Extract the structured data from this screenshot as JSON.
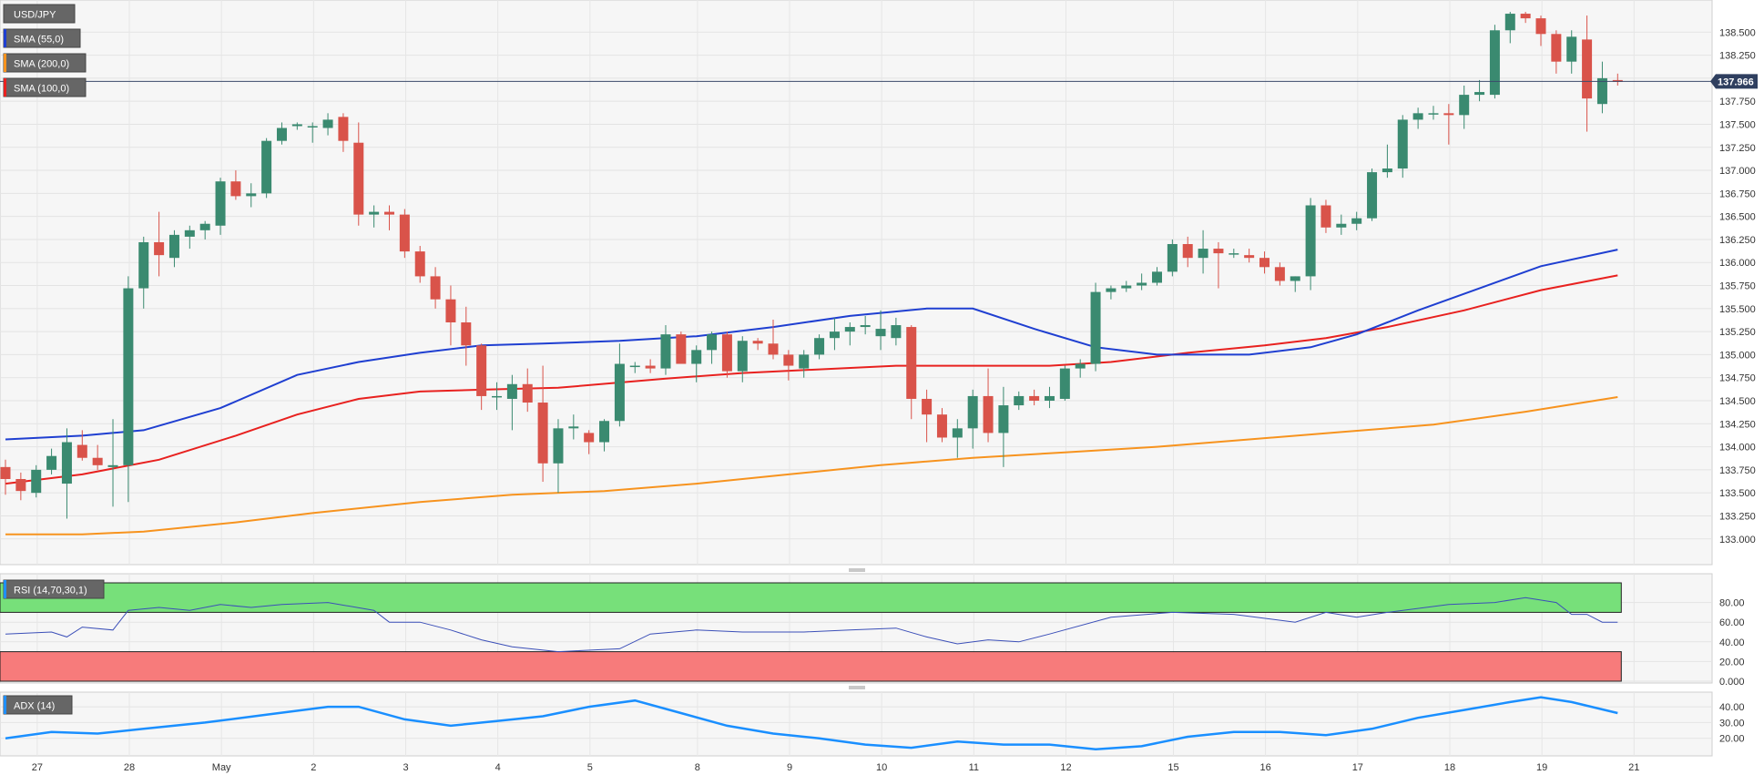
{
  "chart_data": [
    {
      "type": "candlestick",
      "legend": [
        {
          "label": "USD/JPY",
          "color": "#ffffff"
        },
        {
          "label": "SMA (55,0)",
          "color": "#1f3fd1"
        },
        {
          "label": "SMA (200,0)",
          "color": "#f7931e"
        },
        {
          "label": "SMA (100,0)",
          "color": "#e8211f"
        }
      ],
      "last_price_label": "137.966",
      "last_price": 137.966,
      "ylim": [
        132.8,
        138.75
      ],
      "y_ticks": [
        "133.000",
        "133.250",
        "133.500",
        "133.750",
        "134.000",
        "134.250",
        "134.500",
        "134.750",
        "135.000",
        "135.250",
        "135.500",
        "135.750",
        "136.000",
        "136.250",
        "136.500",
        "136.750",
        "137.000",
        "137.250",
        "137.500",
        "137.750",
        "138.000",
        "138.250",
        "138.500"
      ],
      "x_labels": [
        {
          "label": "27",
          "i": 1
        },
        {
          "label": "28",
          "i": 7
        },
        {
          "label": "May",
          "i": 13
        },
        {
          "label": "2",
          "i": 19
        },
        {
          "label": "3",
          "i": 25
        },
        {
          "label": "4",
          "i": 31
        },
        {
          "label": "5",
          "i": 37
        },
        {
          "label": "8",
          "i": 44
        },
        {
          "label": "9",
          "i": 50
        },
        {
          "label": "10",
          "i": 56
        },
        {
          "label": "11",
          "i": 62
        },
        {
          "label": "12",
          "i": 68
        },
        {
          "label": "15",
          "i": 75
        },
        {
          "label": "16",
          "i": 81
        },
        {
          "label": "17",
          "i": 87
        },
        {
          "label": "18",
          "i": 93
        },
        {
          "label": "19",
          "i": 99
        },
        {
          "label": "21",
          "i": 105
        }
      ],
      "ohlc": [
        [
          133.78,
          133.86,
          133.48,
          133.65
        ],
        [
          133.65,
          133.72,
          133.42,
          133.52
        ],
        [
          133.5,
          133.8,
          133.45,
          133.75
        ],
        [
          133.75,
          133.98,
          133.7,
          133.9
        ],
        [
          133.6,
          134.2,
          133.22,
          134.05
        ],
        [
          134.02,
          134.18,
          133.85,
          133.88
        ],
        [
          133.88,
          134.02,
          133.75,
          133.8
        ],
        [
          133.78,
          134.3,
          133.35,
          133.8
        ],
        [
          133.8,
          135.85,
          133.4,
          135.72
        ],
        [
          135.72,
          136.28,
          135.5,
          136.22
        ],
        [
          136.22,
          136.55,
          135.85,
          136.08
        ],
        [
          136.05,
          136.35,
          135.95,
          136.3
        ],
        [
          136.28,
          136.4,
          136.15,
          136.35
        ],
        [
          136.35,
          136.45,
          136.25,
          136.42
        ],
        [
          136.4,
          136.92,
          136.3,
          136.88
        ],
        [
          136.88,
          137.0,
          136.68,
          136.72
        ],
        [
          136.72,
          136.86,
          136.6,
          136.75
        ],
        [
          136.75,
          137.35,
          136.7,
          137.32
        ],
        [
          137.32,
          137.52,
          137.28,
          137.46
        ],
        [
          137.48,
          137.52,
          137.44,
          137.5
        ],
        [
          137.48,
          137.52,
          137.3,
          137.48
        ],
        [
          137.46,
          137.62,
          137.38,
          137.55
        ],
        [
          137.58,
          137.62,
          137.2,
          137.32
        ],
        [
          137.3,
          137.52,
          136.4,
          136.52
        ],
        [
          136.52,
          136.62,
          136.38,
          136.55
        ],
        [
          136.55,
          136.62,
          136.35,
          136.52
        ],
        [
          136.52,
          136.58,
          136.05,
          136.12
        ],
        [
          136.12,
          136.18,
          135.78,
          135.85
        ],
        [
          135.85,
          135.95,
          135.5,
          135.6
        ],
        [
          135.6,
          135.75,
          135.1,
          135.35
        ],
        [
          135.35,
          135.52,
          134.88,
          135.1
        ],
        [
          135.1,
          135.12,
          134.4,
          134.55
        ],
        [
          134.55,
          134.7,
          134.4,
          134.55
        ],
        [
          134.52,
          134.78,
          134.18,
          134.68
        ],
        [
          134.68,
          134.85,
          134.38,
          134.48
        ],
        [
          134.48,
          134.88,
          133.62,
          133.82
        ],
        [
          133.82,
          134.3,
          133.5,
          134.2
        ],
        [
          134.2,
          134.35,
          134.08,
          134.22
        ],
        [
          134.15,
          134.18,
          133.92,
          134.05
        ],
        [
          134.05,
          134.3,
          133.95,
          134.28
        ],
        [
          134.28,
          135.12,
          134.22,
          134.9
        ],
        [
          134.88,
          134.92,
          134.8,
          134.88
        ],
        [
          134.88,
          134.95,
          134.8,
          134.85
        ],
        [
          134.85,
          135.32,
          134.78,
          135.22
        ],
        [
          135.22,
          135.25,
          134.95,
          134.9
        ],
        [
          134.9,
          135.1,
          134.7,
          135.05
        ],
        [
          135.05,
          135.25,
          134.9,
          135.22
        ],
        [
          135.22,
          135.25,
          134.75,
          134.82
        ],
        [
          134.82,
          135.2,
          134.7,
          135.15
        ],
        [
          135.15,
          135.18,
          135.05,
          135.12
        ],
        [
          135.12,
          135.38,
          134.95,
          135.0
        ],
        [
          135.0,
          135.05,
          134.72,
          134.88
        ],
        [
          134.85,
          135.05,
          134.75,
          135.0
        ],
        [
          135.0,
          135.22,
          134.95,
          135.18
        ],
        [
          135.18,
          135.4,
          135.05,
          135.25
        ],
        [
          135.25,
          135.35,
          135.1,
          135.3
        ],
        [
          135.3,
          135.42,
          135.22,
          135.32
        ],
        [
          135.2,
          135.48,
          135.05,
          135.28
        ],
        [
          135.18,
          135.4,
          135.1,
          135.32
        ],
        [
          135.3,
          135.32,
          134.3,
          134.52
        ],
        [
          134.52,
          134.62,
          134.05,
          134.35
        ],
        [
          134.35,
          134.42,
          134.05,
          134.1
        ],
        [
          134.1,
          134.3,
          133.88,
          134.2
        ],
        [
          134.2,
          134.62,
          133.98,
          134.55
        ],
        [
          134.55,
          134.85,
          134.05,
          134.15
        ],
        [
          134.15,
          134.65,
          133.78,
          134.45
        ],
        [
          134.45,
          134.6,
          134.4,
          134.55
        ],
        [
          134.55,
          134.62,
          134.45,
          134.5
        ],
        [
          134.5,
          134.65,
          134.42,
          134.55
        ],
        [
          134.52,
          134.88,
          134.5,
          134.85
        ],
        [
          134.85,
          134.95,
          134.75,
          134.9
        ],
        [
          134.9,
          135.78,
          134.82,
          135.68
        ],
        [
          135.68,
          135.75,
          135.6,
          135.72
        ],
        [
          135.72,
          135.8,
          135.68,
          135.75
        ],
        [
          135.75,
          135.88,
          135.7,
          135.78
        ],
        [
          135.78,
          135.95,
          135.75,
          135.9
        ],
        [
          135.9,
          136.25,
          135.85,
          136.2
        ],
        [
          136.2,
          136.28,
          135.95,
          136.05
        ],
        [
          136.05,
          136.35,
          135.88,
          136.15
        ],
        [
          136.15,
          136.22,
          135.72,
          136.1
        ],
        [
          136.1,
          136.15,
          136.05,
          136.1
        ],
        [
          136.08,
          136.15,
          136.0,
          136.05
        ],
        [
          136.05,
          136.12,
          135.88,
          135.95
        ],
        [
          135.95,
          136.0,
          135.75,
          135.8
        ],
        [
          135.8,
          135.85,
          135.68,
          135.85
        ],
        [
          135.85,
          136.7,
          135.7,
          136.62
        ],
        [
          136.62,
          136.68,
          136.32,
          136.38
        ],
        [
          136.38,
          136.52,
          136.3,
          136.42
        ],
        [
          136.42,
          136.55,
          136.35,
          136.48
        ],
        [
          136.48,
          137.02,
          136.45,
          136.98
        ],
        [
          136.98,
          137.28,
          136.92,
          137.02
        ],
        [
          137.02,
          137.6,
          136.92,
          137.55
        ],
        [
          137.55,
          137.68,
          137.45,
          137.62
        ],
        [
          137.62,
          137.7,
          137.55,
          137.62
        ],
        [
          137.62,
          137.72,
          137.28,
          137.6
        ],
        [
          137.6,
          137.92,
          137.45,
          137.82
        ],
        [
          137.82,
          137.98,
          137.75,
          137.85
        ],
        [
          137.82,
          138.58,
          137.78,
          138.52
        ],
        [
          138.52,
          138.72,
          138.38,
          138.7
        ],
        [
          138.7,
          138.72,
          138.6,
          138.65
        ],
        [
          138.65,
          138.68,
          138.35,
          138.48
        ],
        [
          138.48,
          138.52,
          138.05,
          138.18
        ],
        [
          138.18,
          138.52,
          138.05,
          138.45
        ],
        [
          138.42,
          138.68,
          137.42,
          137.78
        ],
        [
          137.72,
          138.18,
          137.62,
          138.0
        ],
        [
          137.98,
          138.05,
          137.92,
          137.96
        ]
      ],
      "sma55": [
        [
          0,
          134.08
        ],
        [
          5,
          134.12
        ],
        [
          9,
          134.18
        ],
        [
          14,
          134.42
        ],
        [
          19,
          134.78
        ],
        [
          23,
          134.92
        ],
        [
          27,
          135.02
        ],
        [
          31,
          135.1
        ],
        [
          35,
          135.12
        ],
        [
          40,
          135.15
        ],
        [
          45,
          135.2
        ],
        [
          50,
          135.3
        ],
        [
          55,
          135.42
        ],
        [
          60,
          135.5
        ],
        [
          63,
          135.5
        ],
        [
          67,
          135.28
        ],
        [
          71,
          135.08
        ],
        [
          75,
          135.0
        ],
        [
          81,
          135.0
        ],
        [
          85,
          135.08
        ],
        [
          88,
          135.22
        ],
        [
          92,
          135.48
        ],
        [
          96,
          135.72
        ],
        [
          100,
          135.96
        ],
        [
          105,
          136.14
        ]
      ],
      "sma100": [
        [
          0,
          133.6
        ],
        [
          5,
          133.7
        ],
        [
          10,
          133.86
        ],
        [
          15,
          134.12
        ],
        [
          19,
          134.35
        ],
        [
          23,
          134.52
        ],
        [
          27,
          134.6
        ],
        [
          31,
          134.62
        ],
        [
          36,
          134.64
        ],
        [
          43,
          134.74
        ],
        [
          48,
          134.8
        ],
        [
          53,
          134.84
        ],
        [
          58,
          134.88
        ],
        [
          63,
          134.88
        ],
        [
          68,
          134.88
        ],
        [
          72,
          134.92
        ],
        [
          77,
          135.02
        ],
        [
          82,
          135.1
        ],
        [
          86,
          135.18
        ],
        [
          90,
          135.3
        ],
        [
          95,
          135.48
        ],
        [
          100,
          135.7
        ],
        [
          105,
          135.86
        ]
      ],
      "sma200": [
        [
          0,
          133.05
        ],
        [
          5,
          133.05
        ],
        [
          9,
          133.08
        ],
        [
          15,
          133.18
        ],
        [
          20,
          133.28
        ],
        [
          27,
          133.4
        ],
        [
          33,
          133.48
        ],
        [
          39,
          133.52
        ],
        [
          45,
          133.6
        ],
        [
          51,
          133.7
        ],
        [
          57,
          133.8
        ],
        [
          63,
          133.88
        ],
        [
          69,
          133.94
        ],
        [
          75,
          134.0
        ],
        [
          81,
          134.08
        ],
        [
          87,
          134.16
        ],
        [
          93,
          134.24
        ],
        [
          99,
          134.38
        ],
        [
          105,
          134.54
        ]
      ]
    },
    {
      "type": "line",
      "indicator": "RSI (14,70,30,1)",
      "ylim": [
        0,
        100
      ],
      "y_ticks": [
        "0.000",
        "20.00",
        "40.00",
        "60.00",
        "80.00"
      ],
      "overbought": 70,
      "oversold": 30,
      "values": [
        [
          0,
          48
        ],
        [
          3,
          50
        ],
        [
          4,
          45
        ],
        [
          5,
          55
        ],
        [
          7,
          52
        ],
        [
          8,
          72
        ],
        [
          10,
          75
        ],
        [
          12,
          72
        ],
        [
          14,
          78
        ],
        [
          16,
          75
        ],
        [
          18,
          78
        ],
        [
          21,
          80
        ],
        [
          24,
          72
        ],
        [
          25,
          60
        ],
        [
          27,
          60
        ],
        [
          29,
          52
        ],
        [
          31,
          42
        ],
        [
          33,
          35
        ],
        [
          36,
          30
        ],
        [
          40,
          33
        ],
        [
          42,
          48
        ],
        [
          45,
          52
        ],
        [
          48,
          50
        ],
        [
          52,
          50
        ],
        [
          55,
          52
        ],
        [
          58,
          54
        ],
        [
          60,
          45
        ],
        [
          62,
          38
        ],
        [
          64,
          42
        ],
        [
          66,
          40
        ],
        [
          68,
          48
        ],
        [
          72,
          65
        ],
        [
          76,
          70
        ],
        [
          80,
          68
        ],
        [
          84,
          60
        ],
        [
          86,
          70
        ],
        [
          88,
          65
        ],
        [
          90,
          70
        ],
        [
          94,
          78
        ],
        [
          97,
          80
        ],
        [
          99,
          85
        ],
        [
          101,
          80
        ],
        [
          102,
          68
        ],
        [
          103,
          68
        ],
        [
          104,
          60
        ],
        [
          105,
          60
        ]
      ]
    },
    {
      "type": "line",
      "indicator": "ADX (14)",
      "ylim": [
        10,
        47
      ],
      "y_ticks": [
        "20.00",
        "30.00",
        "40.00"
      ],
      "values": [
        [
          0,
          20
        ],
        [
          3,
          24
        ],
        [
          6,
          23
        ],
        [
          9,
          26
        ],
        [
          13,
          30
        ],
        [
          17,
          35
        ],
        [
          21,
          40
        ],
        [
          23,
          40
        ],
        [
          26,
          32
        ],
        [
          29,
          28
        ],
        [
          32,
          31
        ],
        [
          35,
          34
        ],
        [
          38,
          40
        ],
        [
          41,
          44
        ],
        [
          44,
          36
        ],
        [
          47,
          28
        ],
        [
          50,
          23
        ],
        [
          53,
          20
        ],
        [
          56,
          16
        ],
        [
          59,
          14
        ],
        [
          62,
          18
        ],
        [
          65,
          16
        ],
        [
          68,
          16
        ],
        [
          71,
          13
        ],
        [
          74,
          15
        ],
        [
          77,
          21
        ],
        [
          80,
          24
        ],
        [
          83,
          24
        ],
        [
          86,
          22
        ],
        [
          89,
          26
        ],
        [
          92,
          33
        ],
        [
          95,
          38
        ],
        [
          98,
          43
        ],
        [
          100,
          46
        ],
        [
          102,
          43
        ],
        [
          105,
          36
        ]
      ]
    }
  ]
}
